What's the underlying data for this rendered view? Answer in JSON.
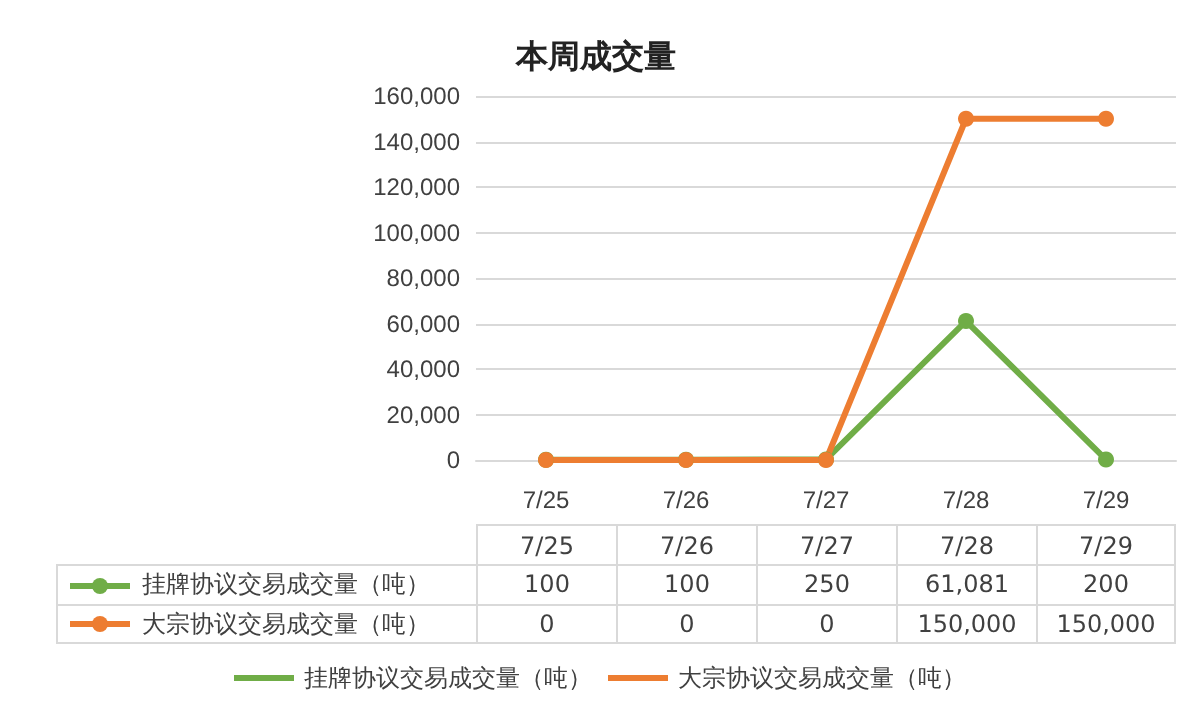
{
  "chart_data": {
    "type": "line",
    "title": "本周成交量",
    "categories": [
      "7/25",
      "7/26",
      "7/27",
      "7/28",
      "7/29"
    ],
    "series": [
      {
        "name": "挂牌协议交易成交量（吨）",
        "color": "#70ad47",
        "values": [
          100,
          100,
          250,
          61081,
          200
        ],
        "value_labels": [
          "100",
          "100",
          "250",
          "61,081",
          "200"
        ]
      },
      {
        "name": "大宗协议交易成交量（吨）",
        "color": "#ed7d31",
        "values": [
          0,
          0,
          0,
          150000,
          150000
        ],
        "value_labels": [
          "0",
          "0",
          "0",
          "150,000",
          "150,000"
        ]
      }
    ],
    "ylim": [
      0,
      160000
    ],
    "yticks": [
      {
        "value": 0,
        "label": "0"
      },
      {
        "value": 20000,
        "label": "20,000"
      },
      {
        "value": 40000,
        "label": "40,000"
      },
      {
        "value": 60000,
        "label": "60,000"
      },
      {
        "value": 80000,
        "label": "80,000"
      },
      {
        "value": 100000,
        "label": "100,000"
      },
      {
        "value": 120000,
        "label": "120,000"
      },
      {
        "value": 140000,
        "label": "140,000"
      },
      {
        "value": 160000,
        "label": "160,000"
      }
    ],
    "grid": "y",
    "legend": "bottom",
    "marker": "circle",
    "line_style": "solid"
  }
}
